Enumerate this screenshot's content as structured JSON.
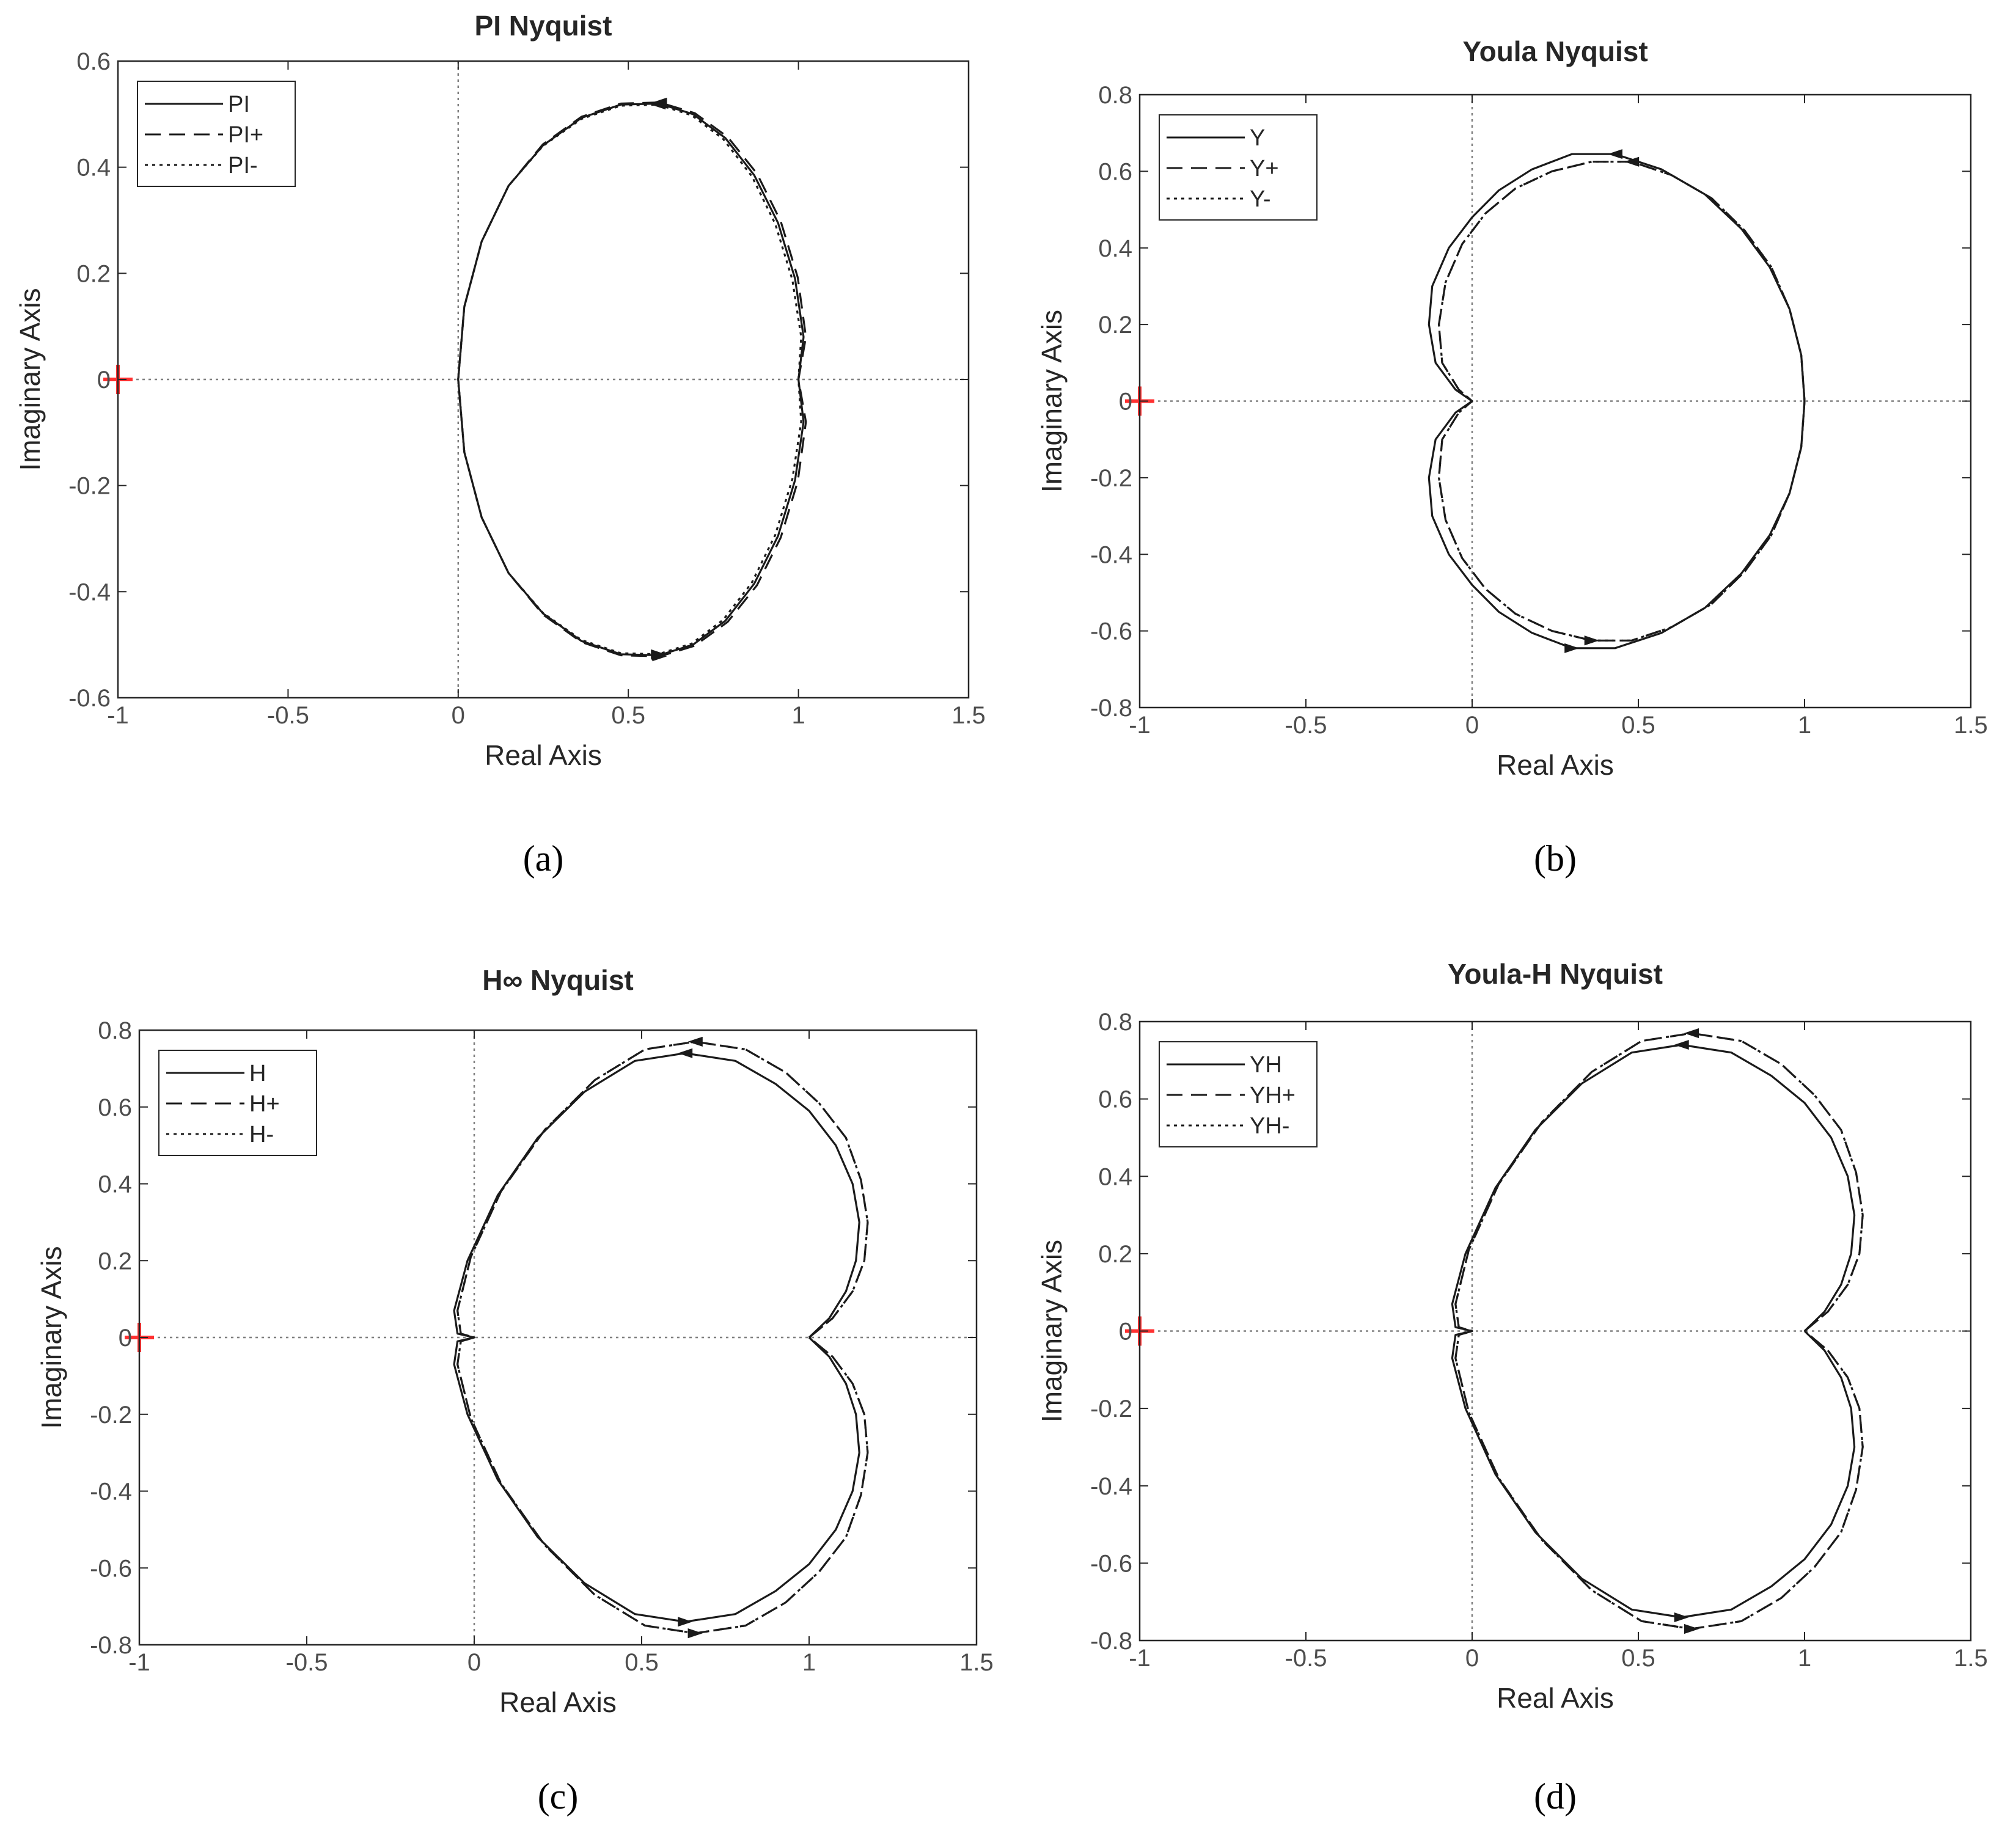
{
  "chart_data": [
    {
      "type": "line",
      "panel_caption": "(a)",
      "title": "PI Nyquist",
      "xlabel": "Real Axis",
      "ylabel": "Imaginary Axis",
      "xlim": [
        -1,
        1.5
      ],
      "ylim": [
        -0.6,
        0.6
      ],
      "xticks": [
        -1,
        -0.5,
        0,
        0.5,
        1,
        1.5
      ],
      "yticks": [
        -0.6,
        -0.4,
        -0.2,
        0,
        0.2,
        0.4,
        0.6
      ],
      "grid": false,
      "legend_position": "top-left",
      "critical_point": [
        -1,
        0
      ],
      "series": [
        {
          "name": "PI",
          "style": "solid",
          "x": [
            0.0,
            0.018,
            0.069,
            0.148,
            0.249,
            0.362,
            0.478,
            0.59,
            0.69,
            0.785,
            0.87,
            0.94,
            0.99,
            1.015,
            1.0,
            1.015,
            0.99,
            0.94,
            0.87,
            0.785,
            0.69,
            0.59,
            0.478,
            0.362,
            0.249,
            0.148,
            0.069,
            0.018,
            0.0
          ],
          "y": [
            0.0,
            0.137,
            0.26,
            0.365,
            0.441,
            0.493,
            0.518,
            0.52,
            0.5,
            0.455,
            0.385,
            0.295,
            0.19,
            0.08,
            0.0,
            -0.08,
            -0.19,
            -0.295,
            -0.385,
            -0.455,
            -0.5,
            -0.52,
            -0.518,
            -0.493,
            -0.441,
            -0.365,
            -0.26,
            -0.137,
            0.0
          ]
        },
        {
          "name": "PI+",
          "style": "dashed",
          "x": [
            0.0,
            0.018,
            0.069,
            0.148,
            0.249,
            0.362,
            0.478,
            0.592,
            0.695,
            0.792,
            0.878,
            0.948,
            0.998,
            1.022,
            1.0,
            1.022,
            0.998,
            0.948,
            0.878,
            0.792,
            0.695,
            0.592,
            0.478,
            0.362,
            0.249,
            0.148,
            0.069,
            0.018,
            0.0
          ],
          "y": [
            0.0,
            0.137,
            0.26,
            0.365,
            0.443,
            0.495,
            0.52,
            0.522,
            0.502,
            0.457,
            0.388,
            0.298,
            0.192,
            0.08,
            0.0,
            -0.08,
            -0.192,
            -0.298,
            -0.388,
            -0.457,
            -0.502,
            -0.522,
            -0.52,
            -0.495,
            -0.443,
            -0.365,
            -0.26,
            -0.137,
            0.0
          ]
        },
        {
          "name": "PI-",
          "style": "dotted",
          "x": [
            0.0,
            0.018,
            0.069,
            0.148,
            0.249,
            0.362,
            0.478,
            0.588,
            0.686,
            0.779,
            0.863,
            0.932,
            0.982,
            1.008,
            1.0,
            1.008,
            0.982,
            0.932,
            0.863,
            0.779,
            0.686,
            0.588,
            0.478,
            0.362,
            0.249,
            0.148,
            0.069,
            0.018,
            0.0
          ],
          "y": [
            0.0,
            0.137,
            0.26,
            0.365,
            0.44,
            0.491,
            0.516,
            0.518,
            0.498,
            0.453,
            0.383,
            0.293,
            0.188,
            0.08,
            0.0,
            -0.08,
            -0.188,
            -0.293,
            -0.383,
            -0.453,
            -0.498,
            -0.518,
            -0.516,
            -0.491,
            -0.44,
            -0.365,
            -0.26,
            -0.137,
            0.0
          ]
        }
      ]
    },
    {
      "type": "line",
      "panel_caption": "(b)",
      "title": "Youla Nyquist",
      "xlabel": "Real Axis",
      "ylabel": "Imaginary Axis",
      "xlim": [
        -1,
        1.5
      ],
      "ylim": [
        -0.8,
        0.8
      ],
      "xticks": [
        -1,
        -0.5,
        0,
        0.5,
        1,
        1.5
      ],
      "yticks": [
        -0.8,
        -0.6,
        -0.4,
        -0.2,
        0,
        0.2,
        0.4,
        0.6,
        0.8
      ],
      "grid": false,
      "legend_position": "top-left",
      "critical_point": [
        -1,
        0
      ],
      "series": [
        {
          "name": "Y",
          "style": "solid",
          "x": [
            1.0,
            0.99,
            0.955,
            0.895,
            0.81,
            0.7,
            0.57,
            0.43,
            0.3,
            0.18,
            0.08,
            0.0,
            -0.07,
            -0.12,
            -0.13,
            -0.11,
            -0.05,
            0.0,
            -0.05,
            -0.11,
            -0.13,
            -0.12,
            -0.07,
            0.0,
            0.08,
            0.18,
            0.3,
            0.43,
            0.57,
            0.7,
            0.81,
            0.895,
            0.955,
            0.99,
            1.0
          ],
          "y": [
            0.0,
            0.12,
            0.24,
            0.35,
            0.45,
            0.54,
            0.605,
            0.645,
            0.645,
            0.605,
            0.55,
            0.48,
            0.4,
            0.3,
            0.2,
            0.1,
            0.03,
            0.0,
            -0.03,
            -0.1,
            -0.2,
            -0.3,
            -0.4,
            -0.48,
            -0.55,
            -0.605,
            -0.645,
            -0.645,
            -0.605,
            -0.54,
            -0.45,
            -0.35,
            -0.24,
            -0.12,
            0.0
          ]
        },
        {
          "name": "Y+",
          "style": "dashed",
          "x": [
            1.0,
            0.99,
            0.955,
            0.9,
            0.82,
            0.72,
            0.6,
            0.48,
            0.36,
            0.24,
            0.13,
            0.04,
            -0.03,
            -0.08,
            -0.1,
            -0.09,
            -0.04,
            0.0,
            -0.04,
            -0.09,
            -0.1,
            -0.08,
            -0.03,
            0.04,
            0.13,
            0.24,
            0.36,
            0.48,
            0.6,
            0.72,
            0.82,
            0.9,
            0.955,
            0.99,
            1.0
          ],
          "y": [
            0.0,
            0.12,
            0.24,
            0.35,
            0.445,
            0.53,
            0.59,
            0.625,
            0.625,
            0.6,
            0.555,
            0.49,
            0.41,
            0.31,
            0.2,
            0.1,
            0.03,
            0.0,
            -0.03,
            -0.1,
            -0.2,
            -0.31,
            -0.41,
            -0.49,
            -0.555,
            -0.6,
            -0.625,
            -0.625,
            -0.59,
            -0.53,
            -0.445,
            -0.35,
            -0.24,
            -0.12,
            0.0
          ]
        },
        {
          "name": "Y-",
          "style": "dotted",
          "x": [
            1.0,
            0.99,
            0.955,
            0.9,
            0.82,
            0.72,
            0.6,
            0.48,
            0.36,
            0.24,
            0.13,
            0.04,
            -0.03,
            -0.08,
            -0.1,
            -0.09,
            -0.04,
            0.0,
            -0.04,
            -0.09,
            -0.1,
            -0.08,
            -0.03,
            0.04,
            0.13,
            0.24,
            0.36,
            0.48,
            0.6,
            0.72,
            0.82,
            0.9,
            0.955,
            0.99,
            1.0
          ],
          "y": [
            0.0,
            0.12,
            0.24,
            0.35,
            0.445,
            0.53,
            0.59,
            0.625,
            0.625,
            0.6,
            0.555,
            0.49,
            0.41,
            0.31,
            0.2,
            0.1,
            0.03,
            0.0,
            -0.03,
            -0.1,
            -0.2,
            -0.31,
            -0.41,
            -0.49,
            -0.555,
            -0.6,
            -0.625,
            -0.625,
            -0.59,
            -0.53,
            -0.445,
            -0.35,
            -0.24,
            -0.12,
            0.0
          ]
        }
      ]
    },
    {
      "type": "line",
      "panel_caption": "(c)",
      "title": "H∞  Nyquist",
      "xlabel": "Real Axis",
      "ylabel": "Imaginary Axis",
      "xlim": [
        -1,
        1.5
      ],
      "ylim": [
        -0.8,
        0.8
      ],
      "xticks": [
        -1,
        -0.5,
        0,
        0.5,
        1,
        1.5
      ],
      "yticks": [
        -0.8,
        -0.6,
        -0.4,
        -0.2,
        0,
        0.2,
        0.4,
        0.6,
        0.8
      ],
      "grid": false,
      "legend_position": "top-left",
      "critical_point": [
        -1,
        0
      ],
      "series": [
        {
          "name": "H",
          "style": "solid",
          "x": [
            1.0,
            1.06,
            1.11,
            1.14,
            1.15,
            1.13,
            1.08,
            1.0,
            0.9,
            0.78,
            0.63,
            0.48,
            0.33,
            0.19,
            0.07,
            -0.02,
            -0.06,
            -0.05,
            0.0,
            -0.05,
            -0.06,
            -0.02,
            0.07,
            0.19,
            0.33,
            0.48,
            0.63,
            0.78,
            0.9,
            1.0,
            1.08,
            1.13,
            1.15,
            1.14,
            1.11,
            1.06,
            1.0
          ],
          "y": [
            0.0,
            0.05,
            0.12,
            0.2,
            0.3,
            0.4,
            0.5,
            0.59,
            0.66,
            0.72,
            0.74,
            0.72,
            0.64,
            0.52,
            0.37,
            0.2,
            0.07,
            0.01,
            0.0,
            -0.01,
            -0.07,
            -0.2,
            -0.37,
            -0.52,
            -0.64,
            -0.72,
            -0.74,
            -0.72,
            -0.66,
            -0.59,
            -0.5,
            -0.4,
            -0.3,
            -0.2,
            -0.12,
            -0.05,
            0.0
          ]
        },
        {
          "name": "H+",
          "style": "dashed",
          "x": [
            1.0,
            1.07,
            1.13,
            1.165,
            1.175,
            1.155,
            1.11,
            1.03,
            0.93,
            0.81,
            0.66,
            0.51,
            0.36,
            0.21,
            0.08,
            -0.01,
            -0.05,
            -0.04,
            0.0,
            -0.04,
            -0.05,
            -0.01,
            0.08,
            0.21,
            0.36,
            0.51,
            0.66,
            0.81,
            0.93,
            1.03,
            1.11,
            1.155,
            1.175,
            1.165,
            1.13,
            1.07,
            1.0
          ],
          "y": [
            0.0,
            0.05,
            0.12,
            0.2,
            0.3,
            0.41,
            0.52,
            0.61,
            0.69,
            0.75,
            0.77,
            0.75,
            0.67,
            0.54,
            0.38,
            0.21,
            0.07,
            0.01,
            0.0,
            -0.01,
            -0.07,
            -0.21,
            -0.38,
            -0.54,
            -0.67,
            -0.75,
            -0.77,
            -0.75,
            -0.69,
            -0.61,
            -0.52,
            -0.41,
            -0.3,
            -0.2,
            -0.12,
            -0.05,
            0.0
          ]
        },
        {
          "name": "H-",
          "style": "dotted",
          "x": [
            1.0,
            1.07,
            1.13,
            1.165,
            1.175,
            1.155,
            1.11,
            1.03,
            0.93,
            0.81,
            0.66,
            0.51,
            0.36,
            0.21,
            0.08,
            -0.01,
            -0.05,
            -0.04,
            0.0,
            -0.04,
            -0.05,
            -0.01,
            0.08,
            0.21,
            0.36,
            0.51,
            0.66,
            0.81,
            0.93,
            1.03,
            1.11,
            1.155,
            1.175,
            1.165,
            1.13,
            1.07,
            1.0
          ],
          "y": [
            0.0,
            0.05,
            0.12,
            0.2,
            0.3,
            0.41,
            0.52,
            0.61,
            0.69,
            0.75,
            0.77,
            0.75,
            0.67,
            0.54,
            0.38,
            0.21,
            0.07,
            0.01,
            0.0,
            -0.01,
            -0.07,
            -0.21,
            -0.38,
            -0.54,
            -0.67,
            -0.75,
            -0.77,
            -0.75,
            -0.69,
            -0.61,
            -0.52,
            -0.41,
            -0.3,
            -0.2,
            -0.12,
            -0.05,
            0.0
          ]
        }
      ]
    },
    {
      "type": "line",
      "panel_caption": "(d)",
      "title": "Youla-H Nyquist",
      "xlabel": "Real Axis",
      "ylabel": "Imaginary Axis",
      "xlim": [
        -1,
        1.5
      ],
      "ylim": [
        -0.8,
        0.8
      ],
      "xticks": [
        -1,
        -0.5,
        0,
        0.5,
        1,
        1.5
      ],
      "yticks": [
        -0.8,
        -0.6,
        -0.4,
        -0.2,
        0,
        0.2,
        0.4,
        0.6,
        0.8
      ],
      "grid": false,
      "legend_position": "top-left",
      "critical_point": [
        -1,
        0
      ],
      "series": [
        {
          "name": "YH",
          "style": "solid",
          "x": [
            1.0,
            1.06,
            1.11,
            1.14,
            1.15,
            1.13,
            1.08,
            1.0,
            0.9,
            0.78,
            0.63,
            0.48,
            0.33,
            0.19,
            0.07,
            -0.02,
            -0.06,
            -0.05,
            0.0,
            -0.05,
            -0.06,
            -0.02,
            0.07,
            0.19,
            0.33,
            0.48,
            0.63,
            0.78,
            0.9,
            1.0,
            1.08,
            1.13,
            1.15,
            1.14,
            1.11,
            1.06,
            1.0
          ],
          "y": [
            0.0,
            0.05,
            0.12,
            0.2,
            0.3,
            0.4,
            0.5,
            0.59,
            0.66,
            0.72,
            0.74,
            0.72,
            0.64,
            0.52,
            0.37,
            0.2,
            0.07,
            0.01,
            0.0,
            -0.01,
            -0.07,
            -0.2,
            -0.37,
            -0.52,
            -0.64,
            -0.72,
            -0.74,
            -0.72,
            -0.66,
            -0.59,
            -0.5,
            -0.4,
            -0.3,
            -0.2,
            -0.12,
            -0.05,
            0.0
          ]
        },
        {
          "name": "YH+",
          "style": "dashed",
          "x": [
            1.0,
            1.07,
            1.13,
            1.165,
            1.175,
            1.155,
            1.11,
            1.03,
            0.93,
            0.81,
            0.66,
            0.51,
            0.36,
            0.21,
            0.08,
            -0.01,
            -0.05,
            -0.04,
            0.0,
            -0.04,
            -0.05,
            -0.01,
            0.08,
            0.21,
            0.36,
            0.51,
            0.66,
            0.81,
            0.93,
            1.03,
            1.11,
            1.155,
            1.175,
            1.165,
            1.13,
            1.07,
            1.0
          ],
          "y": [
            0.0,
            0.05,
            0.12,
            0.2,
            0.3,
            0.41,
            0.52,
            0.61,
            0.69,
            0.75,
            0.77,
            0.75,
            0.67,
            0.54,
            0.38,
            0.21,
            0.07,
            0.01,
            0.0,
            -0.01,
            -0.07,
            -0.21,
            -0.38,
            -0.54,
            -0.67,
            -0.75,
            -0.77,
            -0.75,
            -0.69,
            -0.61,
            -0.52,
            -0.41,
            -0.3,
            -0.2,
            -0.12,
            -0.05,
            0.0
          ]
        },
        {
          "name": "YH-",
          "style": "dotted",
          "x": [
            1.0,
            1.07,
            1.13,
            1.165,
            1.175,
            1.155,
            1.11,
            1.03,
            0.93,
            0.81,
            0.66,
            0.51,
            0.36,
            0.21,
            0.08,
            -0.01,
            -0.05,
            -0.04,
            0.0,
            -0.04,
            -0.05,
            -0.01,
            0.08,
            0.21,
            0.36,
            0.51,
            0.66,
            0.81,
            0.93,
            1.03,
            1.11,
            1.155,
            1.175,
            1.165,
            1.13,
            1.07,
            1.0
          ],
          "y": [
            0.0,
            0.05,
            0.12,
            0.2,
            0.3,
            0.41,
            0.52,
            0.61,
            0.69,
            0.75,
            0.77,
            0.75,
            0.67,
            0.54,
            0.38,
            0.21,
            0.07,
            0.01,
            0.0,
            -0.01,
            -0.07,
            -0.21,
            -0.38,
            -0.54,
            -0.67,
            -0.75,
            -0.77,
            -0.75,
            -0.69,
            -0.61,
            -0.52,
            -0.41,
            -0.3,
            -0.2,
            -0.12,
            -0.05,
            0.0
          ]
        }
      ]
    }
  ],
  "colors": {
    "curve": "#1a1a1a",
    "axis_box": "#262626",
    "tick_text": "#4d4d4d",
    "reference_lines": "#808080",
    "critical_point_marker": "#ff3030"
  }
}
